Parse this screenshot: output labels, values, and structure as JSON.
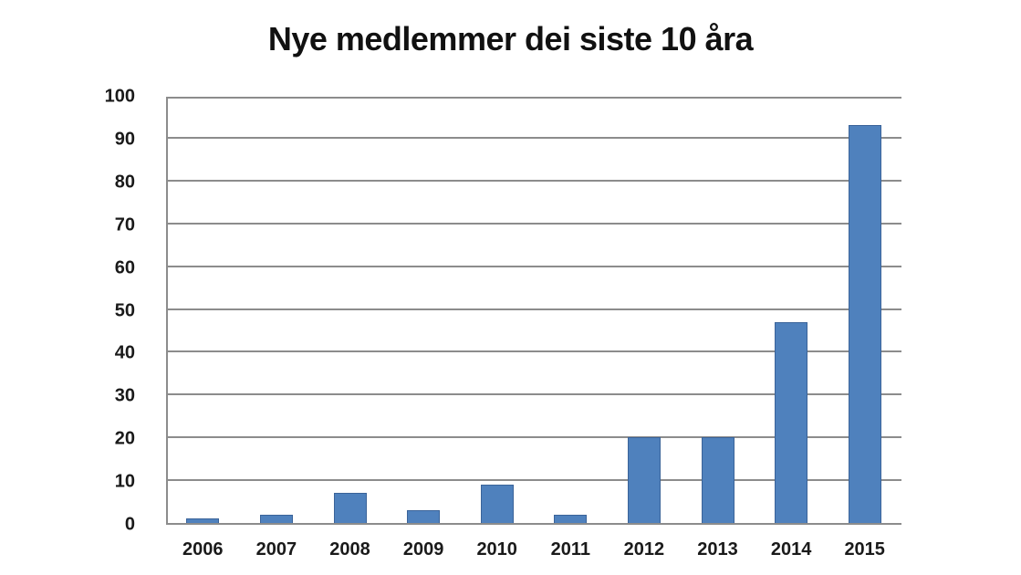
{
  "chart_data": {
    "type": "bar",
    "title": "Nye medlemmer dei siste 10 åra",
    "categories": [
      "2006",
      "2007",
      "2008",
      "2009",
      "2010",
      "2011",
      "2012",
      "2013",
      "2014",
      "2015"
    ],
    "values": [
      1,
      2,
      7,
      3,
      9,
      2,
      20,
      20,
      47,
      93
    ],
    "xlabel": "",
    "ylabel": "",
    "ylim": [
      0,
      100
    ],
    "ytick_step": 10,
    "ytick_labels": [
      "0",
      "10",
      "20",
      "30",
      "40",
      "50",
      "60",
      "70",
      "80",
      "90",
      "100"
    ],
    "grid": true,
    "legend": false,
    "colors": {
      "bar_fill": "#4f81bd",
      "bar_border": "#3a6399",
      "grid_line": "#8c8c8c",
      "axis_line": "#8c8c8c",
      "title_text": "#111111",
      "tick_text": "#1a1a1a",
      "background": "#ffffff"
    }
  }
}
